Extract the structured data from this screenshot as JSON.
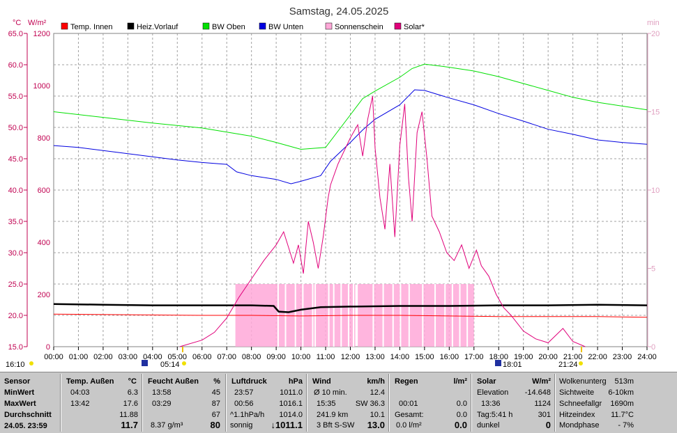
{
  "title": "Samstag, 24.05.2025",
  "legend": [
    {
      "label": "Temp. Innen",
      "color": "#ff0000"
    },
    {
      "label": "Heiz.Vorlauf",
      "color": "#000000"
    },
    {
      "label": "BW Oben",
      "color": "#00e000"
    },
    {
      "label": "BW Unten",
      "color": "#0000e0"
    },
    {
      "label": "Sonnenschein",
      "color": "#ffa8d8"
    },
    {
      "label": "Solar*",
      "color": "#e0007a"
    }
  ],
  "axes": {
    "left_unit": "°C",
    "left2_unit": "W/m²",
    "right_unit": "min"
  },
  "chart_data": {
    "type": "line",
    "title": "Samstag, 24.05.2025",
    "x_range": [
      "00:00",
      "24:00"
    ],
    "x_ticks": [
      "00:00",
      "01:00",
      "02:00",
      "03:00",
      "04:00",
      "05:00",
      "06:00",
      "07:00",
      "08:00",
      "09:00",
      "10:00",
      "11:00",
      "12:00",
      "13:00",
      "14:00",
      "15:00",
      "16:00",
      "17:00",
      "18:00",
      "19:00",
      "20:00",
      "21:00",
      "22:00",
      "23:00",
      "24:00"
    ],
    "y_temp": {
      "range": [
        15,
        65
      ],
      "ticks": [
        "15.0",
        "20.0",
        "25.0",
        "30.0",
        "35.0",
        "40.0",
        "45.0",
        "50.0",
        "55.0",
        "60.0",
        "65.0"
      ]
    },
    "y_solar": {
      "range": [
        0,
        1200
      ],
      "ticks": [
        "0",
        "200",
        "400",
        "600",
        "800",
        "1000",
        "1200"
      ]
    },
    "y_min": {
      "range": [
        0,
        20
      ],
      "ticks": [
        "0",
        "5",
        "10",
        "15",
        "20"
      ]
    },
    "grid": true,
    "series": [
      {
        "name": "Temp. Innen",
        "axis": "temp",
        "color": "#ff0000",
        "points": [
          [
            0,
            20.2
          ],
          [
            3,
            20.1
          ],
          [
            6,
            20.0
          ],
          [
            8,
            20.0
          ],
          [
            10,
            19.9
          ],
          [
            12,
            20.0
          ],
          [
            14,
            20.0
          ],
          [
            16,
            19.9
          ],
          [
            18,
            19.8
          ],
          [
            20,
            19.8
          ],
          [
            22,
            19.8
          ],
          [
            24,
            19.7
          ]
        ]
      },
      {
        "name": "Heiz.Vorlauf",
        "axis": "temp",
        "color": "#000000",
        "points": [
          [
            0,
            21.8
          ],
          [
            2,
            21.7
          ],
          [
            4,
            21.6
          ],
          [
            6,
            21.6
          ],
          [
            8,
            21.6
          ],
          [
            8.9,
            21.5
          ],
          [
            9.1,
            20.6
          ],
          [
            9.5,
            20.5
          ],
          [
            10,
            20.9
          ],
          [
            10.8,
            21.3
          ],
          [
            12,
            21.4
          ],
          [
            14,
            21.5
          ],
          [
            16,
            21.5
          ],
          [
            18,
            21.6
          ],
          [
            20,
            21.6
          ],
          [
            22,
            21.7
          ],
          [
            24,
            21.6
          ]
        ]
      },
      {
        "name": "BW Oben",
        "axis": "temp",
        "color": "#00e000",
        "points": [
          [
            0,
            52.5
          ],
          [
            2,
            51.6
          ],
          [
            4,
            50.7
          ],
          [
            6,
            49.9
          ],
          [
            8,
            48.6
          ],
          [
            9,
            47.6
          ],
          [
            10,
            46.5
          ],
          [
            11,
            46.8
          ],
          [
            12,
            52.0
          ],
          [
            12.5,
            54.6
          ],
          [
            13,
            55.8
          ],
          [
            14,
            58.0
          ],
          [
            14.5,
            59.4
          ],
          [
            15,
            60.1
          ],
          [
            16,
            59.6
          ],
          [
            17,
            59.0
          ],
          [
            18,
            58.1
          ],
          [
            19,
            57.0
          ],
          [
            20,
            55.9
          ],
          [
            21,
            54.8
          ],
          [
            22,
            54.0
          ],
          [
            23,
            53.4
          ],
          [
            24,
            52.8
          ]
        ]
      },
      {
        "name": "BW Unten",
        "axis": "temp",
        "color": "#0000e0",
        "points": [
          [
            0,
            47.1
          ],
          [
            1,
            46.8
          ],
          [
            2,
            46.3
          ],
          [
            3,
            45.8
          ],
          [
            4,
            45.3
          ],
          [
            5,
            44.8
          ],
          [
            6,
            44.4
          ],
          [
            7,
            44.1
          ],
          [
            7.4,
            42.9
          ],
          [
            8,
            42.3
          ],
          [
            9,
            41.7
          ],
          [
            9.6,
            41.0
          ],
          [
            10,
            41.4
          ],
          [
            10.8,
            42.3
          ],
          [
            11.2,
            44.6
          ],
          [
            12,
            47.6
          ],
          [
            12.5,
            49.6
          ],
          [
            13,
            51.3
          ],
          [
            14,
            53.6
          ],
          [
            14.6,
            56.0
          ],
          [
            15,
            55.9
          ],
          [
            16,
            54.7
          ],
          [
            17,
            53.6
          ],
          [
            18,
            52.2
          ],
          [
            19,
            51.0
          ],
          [
            20,
            49.7
          ],
          [
            21,
            48.9
          ],
          [
            22,
            48.0
          ],
          [
            23,
            47.6
          ],
          [
            24,
            47.3
          ]
        ]
      },
      {
        "name": "Solar*",
        "axis": "solar",
        "color": "#e0007a",
        "points": [
          [
            5.1,
            0
          ],
          [
            6,
            25
          ],
          [
            6.5,
            55
          ],
          [
            7,
            110
          ],
          [
            7.5,
            190
          ],
          [
            8,
            260
          ],
          [
            8.5,
            330
          ],
          [
            9,
            390
          ],
          [
            9.3,
            440
          ],
          [
            9.5,
            380
          ],
          [
            9.7,
            320
          ],
          [
            9.9,
            390
          ],
          [
            10.1,
            280
          ],
          [
            10.3,
            480
          ],
          [
            10.5,
            400
          ],
          [
            10.7,
            300
          ],
          [
            10.9,
            420
          ],
          [
            11.1,
            570
          ],
          [
            11.2,
            620
          ],
          [
            11.5,
            700
          ],
          [
            12,
            800
          ],
          [
            12.3,
            850
          ],
          [
            12.5,
            730
          ],
          [
            12.7,
            870
          ],
          [
            12.9,
            960
          ],
          [
            13,
            760
          ],
          [
            13.2,
            570
          ],
          [
            13.4,
            450
          ],
          [
            13.6,
            700
          ],
          [
            13.8,
            420
          ],
          [
            14,
            770
          ],
          [
            14.2,
            930
          ],
          [
            14.35,
            650
          ],
          [
            14.5,
            480
          ],
          [
            14.7,
            820
          ],
          [
            14.9,
            900
          ],
          [
            15.1,
            720
          ],
          [
            15.3,
            500
          ],
          [
            15.6,
            440
          ],
          [
            15.9,
            360
          ],
          [
            16.2,
            330
          ],
          [
            16.5,
            390
          ],
          [
            16.8,
            300
          ],
          [
            17.1,
            370
          ],
          [
            17.3,
            310
          ],
          [
            17.6,
            270
          ],
          [
            17.9,
            200
          ],
          [
            18.2,
            150
          ],
          [
            18.5,
            120
          ],
          [
            19,
            60
          ],
          [
            19.5,
            30
          ],
          [
            20,
            15
          ],
          [
            20.6,
            70
          ],
          [
            21,
            20
          ],
          [
            21.5,
            0
          ]
        ]
      },
      {
        "name": "Sonnenschein",
        "axis": "min",
        "color": "#ffa8d8",
        "segments": [
          [
            7.35,
            12.2
          ],
          [
            12.3,
            17.0
          ]
        ]
      }
    ]
  },
  "markers": {
    "left_time": "16:10",
    "sunrise": "05:14",
    "sunset": "18:01",
    "right_time": "21:24"
  },
  "stats": {
    "sensor": {
      "header": "Sensor",
      "rows": [
        "MinWert",
        "MaxWert",
        "Durchschnitt",
        "24.05.  23:59"
      ]
    },
    "temp": {
      "header": "Temp. Außen",
      "unit": "°C",
      "rows": [
        [
          "04:03",
          "6.3"
        ],
        [
          "13:42",
          "17.6"
        ],
        [
          "",
          "11.88"
        ],
        [
          "",
          "11.7"
        ]
      ]
    },
    "humidity": {
      "header": "Feucht Außen",
      "unit": "%",
      "rows": [
        [
          "13:58",
          "45"
        ],
        [
          "03:29",
          "87"
        ],
        [
          "",
          "67"
        ],
        [
          "8.37 g/m³",
          "80"
        ]
      ]
    },
    "pressure": {
      "header": "Luftdruck",
      "unit": "hPa",
      "rows": [
        [
          "23:57",
          "1011.0"
        ],
        [
          "00:56",
          "1016.1"
        ],
        [
          "^1.1hPa/h",
          "1014.0"
        ],
        [
          "sonnig",
          "↓1011.1"
        ]
      ]
    },
    "wind": {
      "header": "Wind",
      "unit": "km/h",
      "rows": [
        [
          "Ø 10 min.",
          "12.4"
        ],
        [
          "15:35",
          "SW 36.3"
        ],
        [
          "241.9 km",
          "10.1"
        ],
        [
          "3 Bft S-SW",
          "13.0"
        ]
      ]
    },
    "rain": {
      "header": "Regen",
      "unit": "l/m²",
      "rows": [
        [
          "",
          ""
        ],
        [
          "00:01",
          "0.0"
        ],
        [
          "Gesamt:",
          "0.0"
        ],
        [
          "0.0 l/m²",
          "0.0"
        ]
      ]
    },
    "solar": {
      "header": "Solar",
      "unit": "W/m²",
      "rows": [
        [
          "Elevation",
          "-14.648"
        ],
        [
          "13:36",
          "1124"
        ],
        [
          "Tag:5:41 h",
          "301"
        ],
        [
          "dunkel",
          "0"
        ]
      ]
    },
    "extra": {
      "rows": [
        [
          "Wolkenunterg",
          "513m"
        ],
        [
          "Sichtweite",
          "6-10km"
        ],
        [
          "Schneefallgr",
          "1690m"
        ],
        [
          "Hitzeindex",
          "11.7°C"
        ],
        [
          "Mondphase",
          "- 7%"
        ]
      ]
    }
  }
}
